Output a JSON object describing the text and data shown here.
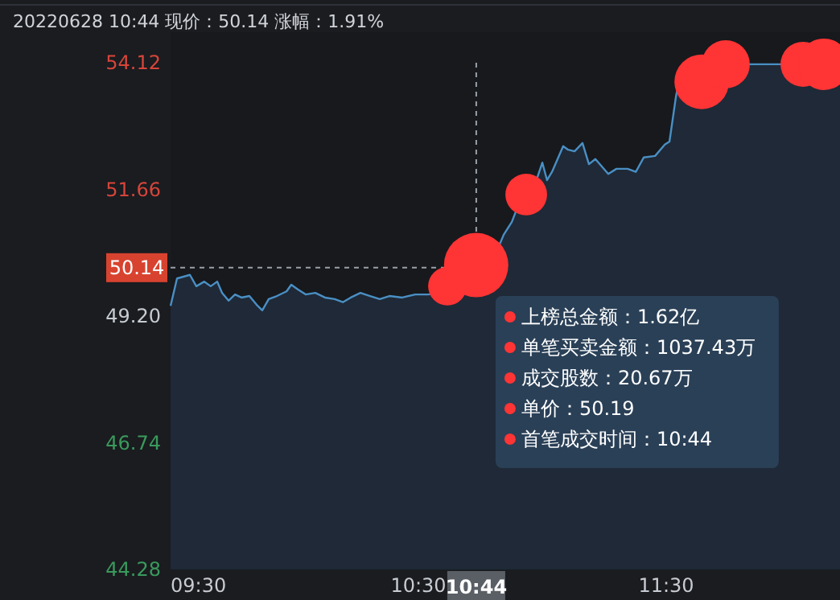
{
  "chart_data": {
    "type": "area",
    "title": "20220628 10:44 现价：50.14 涨幅：1.91%",
    "xlim": [
      9.5,
      12.201
    ],
    "xticks": [
      {
        "value": 9.5,
        "label": "09:30"
      },
      {
        "value": 10.5,
        "label": "10:30"
      },
      {
        "value": 11.5,
        "label": "11:30"
      }
    ],
    "ylim": [
      44.28,
      54.12
    ],
    "yticks": [
      44.28,
      46.74,
      {
        "value": 49.2,
        "label": "49.20"
      },
      51.66,
      54.12
    ],
    "grid": false,
    "series": [
      {
        "color": "#4a8fc4",
        "marker": "none",
        "x": [
          9.5,
          9.526,
          9.578,
          9.604,
          9.636,
          9.662,
          9.688,
          9.708,
          9.734,
          9.76,
          9.786,
          9.818,
          9.851,
          9.87,
          9.896,
          9.929,
          9.968,
          9.987,
          10.013,
          10.045,
          10.084,
          10.123,
          10.162,
          10.195,
          10.227,
          10.266,
          10.305,
          10.344,
          10.383,
          10.435,
          10.487,
          10.539,
          10.597,
          10.643,
          10.695,
          10.74,
          10.792,
          10.844,
          10.877,
          10.909,
          10.974,
          11.0,
          11.019,
          11.039,
          11.084,
          11.104,
          11.13,
          11.162,
          11.188,
          11.214,
          11.266,
          11.299,
          11.344,
          11.377,
          11.409,
          11.455,
          11.494,
          11.513,
          11.539,
          11.558,
          11.669,
          11.734,
          11.864,
          11.961,
          12.123,
          12.201
        ],
        "values": [
          49.4,
          49.93,
          50.0,
          49.78,
          49.87,
          49.78,
          49.87,
          49.65,
          49.5,
          49.62,
          49.56,
          49.59,
          49.4,
          49.31,
          49.53,
          49.59,
          49.68,
          49.81,
          49.72,
          49.62,
          49.65,
          49.56,
          49.53,
          49.47,
          49.56,
          49.65,
          49.59,
          49.53,
          49.59,
          49.56,
          49.62,
          49.62,
          49.65,
          49.72,
          49.81,
          49.93,
          50.18,
          50.78,
          51.03,
          51.43,
          51.81,
          52.18,
          51.84,
          52.0,
          52.5,
          52.43,
          52.4,
          52.56,
          52.15,
          52.25,
          51.96,
          52.06,
          52.06,
          52.0,
          52.28,
          52.31,
          52.53,
          52.59,
          53.46,
          53.93,
          53.93,
          54.09,
          54.09,
          54.09,
          54.12,
          54.12
        ]
      },
      {
        "type": "bubble",
        "color": "#ff3434",
        "x": [
          10.617,
          10.733,
          10.935,
          11.643,
          11.74,
          12.052,
          12.136
        ],
        "values": [
          49.78,
          50.19,
          51.56,
          53.75,
          54.09,
          54.09,
          54.09
        ],
        "sizes": [
          0.36,
          1,
          0.42,
          0.72,
          0.56,
          0.49,
          0.64
        ]
      }
    ],
    "ref_lines": [
      {
        "axis": "y",
        "value": 50.14,
        "label": "50.14",
        "color": "#9aa0a8",
        "line_style": "dashed"
      },
      {
        "axis": "x",
        "value": 10.733333333333333,
        "color": "#9aa0a8",
        "line_style": "dashed"
      }
    ],
    "annotations": [
      {
        "text": "10:44",
        "x": 10.733333333333333
      },
      "上榜总金额：1.62亿",
      "单笔买卖金额：1037.43万",
      "成交股数：20.67万",
      "单价：50.19",
      "首笔成交时间：10:44"
    ]
  }
}
